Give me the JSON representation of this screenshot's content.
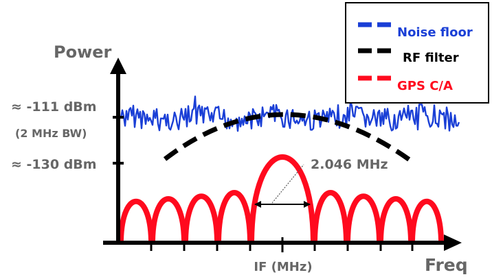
{
  "axes": {
    "y_label": "Power",
    "x_label": "Freq",
    "x_center_label": "IF (MHz)"
  },
  "levels": {
    "noise_level": "≈ -111 dBm",
    "noise_bw": "(2 MHz BW)",
    "signal_level": "≈ -130 dBm"
  },
  "annotation": {
    "bandwidth": "2.046 MHz"
  },
  "legend": {
    "items": [
      {
        "label": "Noise floor",
        "color": "#1a3fd6"
      },
      {
        "label": "RF filter",
        "color": "#000000"
      },
      {
        "label": "GPS C/A",
        "color": "#ff0a1e"
      }
    ]
  },
  "colors": {
    "axis": "#000000",
    "label_gray": "#666666",
    "noise": "#1a3fd6",
    "filter": "#000000",
    "gps": "#ff0a1e"
  }
}
